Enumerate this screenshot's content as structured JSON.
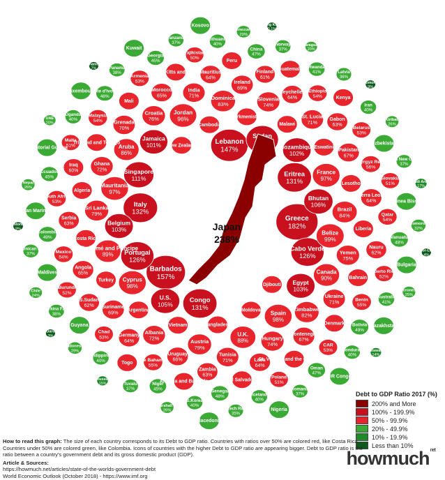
{
  "chart_data": {
    "type": "bubble-map",
    "center": {
      "name": "Japan",
      "value": "238%"
    },
    "items": [
      {
        "name": "Djibouti",
        "value": ""
      },
      {
        "name": "New Zealand",
        "value": ""
      },
      {
        "name": "Moldova",
        "value": ""
      },
      {
        "name": "Cambodia",
        "value": ""
      },
      {
        "name": "Indonesia",
        "value": "29%"
      },
      {
        "name": "Comoros",
        "value": "32%"
      },
      {
        "name": "Bangladesh",
        "value": ""
      },
      {
        "name": "Senegal",
        "value": "48%"
      },
      {
        "name": "China",
        "value": "47%"
      },
      {
        "name": "Côte d'Ivoire",
        "value": "48%"
      },
      {
        "name": "Oman",
        "value": "47%"
      },
      {
        "name": "Vanuatu",
        "value": "48%"
      },
      {
        "name": "Ecuador",
        "value": "45%"
      },
      {
        "name": "Turkmenistan",
        "value": ""
      },
      {
        "name": "Niger",
        "value": "45%"
      },
      {
        "name": "Vietnam",
        "value": ""
      },
      {
        "name": "Malawi",
        "value": ""
      },
      {
        "name": "Iraq",
        "value": "60%"
      },
      {
        "name": "India",
        "value": "71%"
      },
      {
        "name": "Ukraine",
        "value": "71%"
      },
      {
        "name": "St. Lucia",
        "value": "71%"
      },
      {
        "name": "Argentina",
        "value": ""
      },
      {
        "name": "Eswatini",
        "value": ""
      },
      {
        "name": "Georgia",
        "value": "45%"
      },
      {
        "name": "Turkey",
        "value": ""
      },
      {
        "name": "Lesotho",
        "value": ""
      },
      {
        "name": "Costa Rica",
        "value": ""
      },
      {
        "name": "Liberia",
        "value": ""
      },
      {
        "name": "Ghana",
        "value": "72%"
      },
      {
        "name": "Mauritania",
        "value": "97%"
      },
      {
        "name": "Jordan",
        "value": "96%"
      },
      {
        "name": "Canada",
        "value": "90%"
      },
      {
        "name": "Grenada",
        "value": "70%"
      },
      {
        "name": "Algeria",
        "value": ""
      },
      {
        "name": "Finland",
        "value": "61%"
      },
      {
        "name": "Albania",
        "value": "72%"
      },
      {
        "name": "Bahrain",
        "value": ""
      },
      {
        "name": "Nepal",
        "value": "26%"
      },
      {
        "name": "Bolivia",
        "value": "49%"
      },
      {
        "name": "Czech Rep.",
        "value": "35%"
      },
      {
        "name": "Nauru",
        "value": "62%"
      },
      {
        "name": "France",
        "value": "97%"
      },
      {
        "name": "Eritrea",
        "value": "131%"
      },
      {
        "name": "Congo",
        "value": "131%"
      },
      {
        "name": "São Tomé and Príncipe",
        "value": "89%"
      },
      {
        "name": "Kyrgyz Rep.",
        "value": "56%"
      },
      {
        "name": "Trinidad and Tobago",
        "value": ""
      },
      {
        "name": "Denmark",
        "value": ""
      },
      {
        "name": "Serbia",
        "value": "63%"
      },
      {
        "name": "Slovenia",
        "value": "74%"
      },
      {
        "name": "Cyprus",
        "value": "98%"
      },
      {
        "name": "Cabo Verde",
        "value": "126%"
      },
      {
        "name": "Kiribati",
        "value": "26%"
      },
      {
        "name": "Mali",
        "value": ""
      },
      {
        "name": "S.Sudan",
        "value": "62%"
      },
      {
        "name": "Spain",
        "value": "98%"
      },
      {
        "name": "Tunisia",
        "value": "71%"
      },
      {
        "name": "The Bahamas",
        "value": "55%"
      },
      {
        "name": "Hungary",
        "value": "74%"
      },
      {
        "name": "Colombia",
        "value": "49%"
      },
      {
        "name": "Gabon",
        "value": "63%"
      },
      {
        "name": "Lebanon",
        "value": "147%"
      },
      {
        "name": "Italy",
        "value": "132%"
      },
      {
        "name": "Suriname",
        "value": "69%"
      },
      {
        "name": "Tajikistan",
        "value": "50%"
      },
      {
        "name": "Belize",
        "value": "99%"
      },
      {
        "name": "Portugal",
        "value": "126%"
      },
      {
        "name": "Australia",
        "value": "41%"
      },
      {
        "name": "St. Vincent and the Grenadines",
        "value": ""
      },
      {
        "name": "Marshall Is.",
        "value": "26%"
      },
      {
        "name": "Saint Kitts and Nevis",
        "value": ""
      },
      {
        "name": "Barbados",
        "value": "157%"
      },
      {
        "name": "Sudan",
        "value": "122%"
      },
      {
        "name": "Ireland",
        "value": "69%"
      },
      {
        "name": "Benin",
        "value": "55%"
      },
      {
        "name": "Poland",
        "value": "51%"
      },
      {
        "name": "Latvia",
        "value": "36%"
      },
      {
        "name": "U.K.",
        "value": "88%"
      },
      {
        "name": "El Salvador",
        "value": ""
      },
      {
        "name": "Peru",
        "value": ""
      },
      {
        "name": "Zambia",
        "value": "63%"
      },
      {
        "name": "Malta",
        "value": "51%"
      },
      {
        "name": "Jamaica",
        "value": "101%"
      },
      {
        "name": "Rwanda",
        "value": "41%"
      },
      {
        "name": "Norway",
        "value": "37%"
      },
      {
        "name": "Yemen",
        "value": "75%"
      },
      {
        "name": "Greece",
        "value": "182%"
      },
      {
        "name": "Singapore",
        "value": "111%"
      },
      {
        "name": "Antigua and Barbuda",
        "value": ""
      },
      {
        "name": "Guatemala",
        "value": ""
      },
      {
        "name": "Romania",
        "value": "37%"
      },
      {
        "name": "Mozambique",
        "value": "102%"
      },
      {
        "name": "Seychelles",
        "value": "64%"
      },
      {
        "name": "Bhutan",
        "value": "106%"
      },
      {
        "name": "Montenegro",
        "value": "67%"
      },
      {
        "name": "Mexico",
        "value": "54%"
      },
      {
        "name": "Iceland",
        "value": "40%"
      },
      {
        "name": "Laos",
        "value": "64%"
      },
      {
        "name": "Egypt",
        "value": "103%"
      },
      {
        "name": "Belgium",
        "value": "103%"
      },
      {
        "name": "U.S.",
        "value": "105%"
      },
      {
        "name": "Papua New Guinea",
        "value": "37%"
      },
      {
        "name": "Togo",
        "value": ""
      },
      {
        "name": "Pakistan",
        "value": "67%"
      },
      {
        "name": "Uganda",
        "value": "40%"
      },
      {
        "name": "Slovakia",
        "value": "51%"
      },
      {
        "name": "Croatia",
        "value": "76%"
      },
      {
        "name": "Ethiopia",
        "value": "54%"
      },
      {
        "name": "Micronesia",
        "value": "25%"
      },
      {
        "name": "Puerto Rico",
        "value": "52%"
      },
      {
        "name": "Aruba",
        "value": "86%"
      },
      {
        "name": "Brazil",
        "value": "84%"
      },
      {
        "name": "Uruguay",
        "value": "66%"
      },
      {
        "name": "Burundi",
        "value": "52%"
      },
      {
        "name": "Dominica",
        "value": "83%"
      },
      {
        "name": "Philippines",
        "value": "40%"
      },
      {
        "name": "Sierra Leone",
        "value": "64%"
      },
      {
        "name": "Sri Lanka",
        "value": "79%"
      },
      {
        "name": "Austria",
        "value": "79%"
      },
      {
        "name": "Zimbabwe",
        "value": "82%"
      },
      {
        "name": "Kenya",
        "value": ""
      },
      {
        "name": "Lithuania",
        "value": "40%"
      },
      {
        "name": "Hong Kong",
        "value": "0.1%"
      },
      {
        "name": "Tuvalu",
        "value": "37%"
      },
      {
        "name": "Morocco",
        "value": "65%"
      },
      {
        "name": "Angola",
        "value": "65%"
      },
      {
        "name": "Guyana",
        "value": ""
      },
      {
        "name": "Brunei Darussalam",
        "value": "3%"
      },
      {
        "name": "Germany",
        "value": "64%"
      },
      {
        "name": "Mauritius",
        "value": "64%"
      },
      {
        "name": "Malaysia",
        "value": "54%"
      },
      {
        "name": "Uzbekistan",
        "value": ""
      },
      {
        "name": "Chad",
        "value": "53%"
      },
      {
        "name": "Maldives",
        "value": ""
      },
      {
        "name": "Guinea Bissau",
        "value": ""
      },
      {
        "name": "Honduras",
        "value": "40%"
      },
      {
        "name": "Timor-Leste",
        "value": "4%"
      },
      {
        "name": "CAR",
        "value": "53%"
      },
      {
        "name": "South Africa",
        "value": "53%"
      },
      {
        "name": "Belarus",
        "value": "53%"
      },
      {
        "name": "Armenia",
        "value": "53%"
      },
      {
        "name": "Qatar",
        "value": "54%"
      },
      {
        "name": "Iran",
        "value": "40%"
      },
      {
        "name": "S.Korea",
        "value": "40%"
      },
      {
        "name": "San Marino",
        "value": ""
      },
      {
        "name": "Afghanistan",
        "value": "7%"
      },
      {
        "name": "Estonia",
        "value": "9%"
      },
      {
        "name": "Tanzania",
        "value": "37%"
      },
      {
        "name": "Dominican Rep.",
        "value": "37%"
      },
      {
        "name": "Paraguay",
        "value": "20%"
      },
      {
        "name": "Solomon Is.",
        "value": "9%"
      },
      {
        "name": "Bulgaria",
        "value": ""
      },
      {
        "name": "Chile",
        "value": "24%"
      },
      {
        "name": "Botswana",
        "value": "14%"
      },
      {
        "name": "Russia",
        "value": "15%"
      },
      {
        "name": "Saudi Arabia",
        "value": "17%"
      },
      {
        "name": "Equatorial Guinea",
        "value": ""
      },
      {
        "name": "Panama",
        "value": "38%"
      },
      {
        "name": "Burkina Faso",
        "value": "38%"
      },
      {
        "name": "Venezuela",
        "value": "29%"
      },
      {
        "name": "Kazakhstan",
        "value": ""
      },
      {
        "name": "Luxembourg",
        "value": ""
      },
      {
        "name": "DR Congo",
        "value": ""
      },
      {
        "name": "UAE",
        "value": "20%"
      },
      {
        "name": "Kuwait",
        "value": ""
      },
      {
        "name": "Nigeria",
        "value": ""
      },
      {
        "name": "Kosovo",
        "value": ""
      },
      {
        "name": "Macedonia",
        "value": ""
      }
    ]
  },
  "legend": {
    "title": "Debt to GDP Ratio 2017 (%)",
    "items": [
      {
        "label": "200% and More",
        "color": "#8b0000"
      },
      {
        "label": "100% - 199.9%",
        "color": "#c8101e"
      },
      {
        "label": "50% - 99.9%",
        "color": "#e8252c"
      },
      {
        "label": "20% - 49.9%",
        "color": "#3aaa35"
      },
      {
        "label": "10% - 19.9%",
        "color": "#1f8a2a"
      },
      {
        "label": "Less than 10%",
        "color": "#0e5a1c"
      }
    ]
  },
  "footer": {
    "how_to_heading": "How to read this graph:",
    "how_to_text": "The size of each country corresponds to its Debt to GDP ratio. Countries with ratios over 50% are colored red, like Costa Rica. Countries under 50% are colored green, like Colombia. Icons of countries with the higher Debt to GDP ratio are appearing bigger. Debt to GDP ratio is the ratio between a country's government debt and its gross domestic product (GDP).",
    "sources_heading": "Article & Sources:",
    "source_1": "https://howmuch.net/articles/state-of-the-worlds-government-debt",
    "source_2": "World Economic Outlook (October 2018) - https://www.imf.org"
  },
  "logo": {
    "text": "howmuch",
    "suffix": "net"
  }
}
